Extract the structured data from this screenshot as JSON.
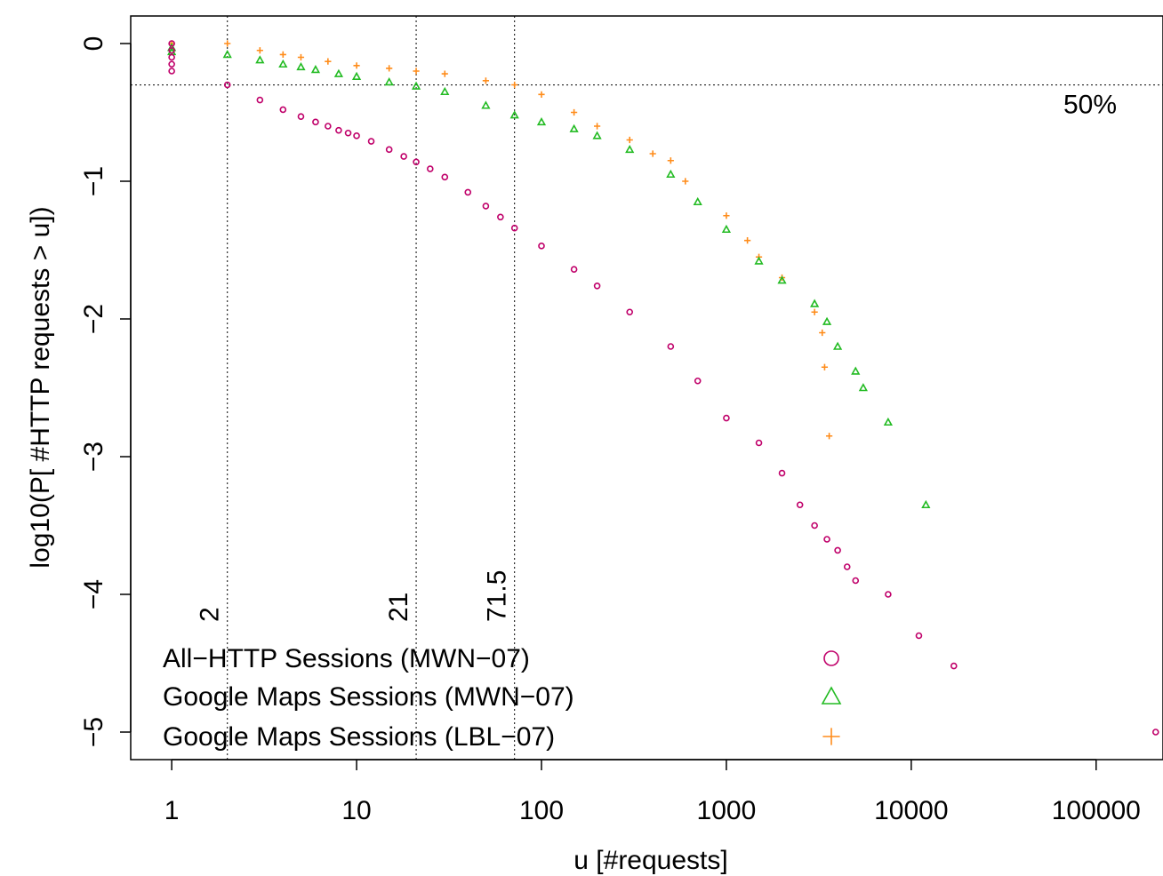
{
  "chart_data": {
    "type": "scatter",
    "title": "",
    "xlabel": "u [#requests]",
    "ylabel": "log10(P[ #HTTP requests  > u])",
    "x_scale": "log10",
    "xlim": [
      0.6,
      230000
    ],
    "ylim": [
      -5.2,
      0.2
    ],
    "x_ticks": [
      1,
      10,
      100,
      1000,
      10000,
      100000
    ],
    "x_tick_labels": [
      "1",
      "10",
      "100",
      "1000",
      "10000",
      "100000"
    ],
    "y_ticks": [
      0,
      -1,
      -2,
      -3,
      -4,
      -5
    ],
    "y_tick_labels": [
      "0",
      "−1",
      "−2",
      "−3",
      "−4",
      "−5"
    ],
    "grid": false,
    "legend_position": "bottom-left",
    "reference_lines": {
      "horizontal": [
        {
          "y": -0.301,
          "label": "50%"
        }
      ],
      "vertical": [
        {
          "x": 2,
          "label": "2"
        },
        {
          "x": 21,
          "label": "21"
        },
        {
          "x": 71.5,
          "label": "71.5"
        }
      ]
    },
    "series": [
      {
        "name": "All−HTTP Sessions (MWN−07)",
        "marker": "circle",
        "color": "#c0006a",
        "points": [
          [
            1,
            0
          ],
          [
            1,
            -0.05
          ],
          [
            1,
            -0.1
          ],
          [
            1,
            -0.15
          ],
          [
            1,
            -0.2
          ],
          [
            2,
            -0.3
          ],
          [
            3,
            -0.41
          ],
          [
            4,
            -0.48
          ],
          [
            5,
            -0.53
          ],
          [
            6,
            -0.57
          ],
          [
            7,
            -0.6
          ],
          [
            8,
            -0.63
          ],
          [
            9,
            -0.65
          ],
          [
            10,
            -0.67
          ],
          [
            12,
            -0.71
          ],
          [
            15,
            -0.77
          ],
          [
            18,
            -0.82
          ],
          [
            21,
            -0.86
          ],
          [
            25,
            -0.91
          ],
          [
            30,
            -0.97
          ],
          [
            40,
            -1.08
          ],
          [
            50,
            -1.18
          ],
          [
            60,
            -1.26
          ],
          [
            71.5,
            -1.34
          ],
          [
            100,
            -1.47
          ],
          [
            150,
            -1.64
          ],
          [
            200,
            -1.76
          ],
          [
            300,
            -1.95
          ],
          [
            500,
            -2.2
          ],
          [
            700,
            -2.45
          ],
          [
            1000,
            -2.72
          ],
          [
            1500,
            -2.9
          ],
          [
            2000,
            -3.12
          ],
          [
            2500,
            -3.35
          ],
          [
            3000,
            -3.5
          ],
          [
            3500,
            -3.6
          ],
          [
            4000,
            -3.68
          ],
          [
            4500,
            -3.8
          ],
          [
            5000,
            -3.9
          ],
          [
            7500,
            -4.0
          ],
          [
            11000,
            -4.3
          ],
          [
            17000,
            -4.52
          ],
          [
            210000,
            -5.0
          ]
        ]
      },
      {
        "name": "Google Maps Sessions (MWN−07)",
        "marker": "triangle",
        "color": "#22bb22",
        "points": [
          [
            1,
            -0.03
          ],
          [
            1,
            -0.06
          ],
          [
            2,
            -0.08
          ],
          [
            3,
            -0.12
          ],
          [
            4,
            -0.15
          ],
          [
            5,
            -0.17
          ],
          [
            6,
            -0.19
          ],
          [
            8,
            -0.22
          ],
          [
            10,
            -0.24
          ],
          [
            15,
            -0.28
          ],
          [
            21,
            -0.31
          ],
          [
            30,
            -0.35
          ],
          [
            50,
            -0.45
          ],
          [
            71.5,
            -0.52
          ],
          [
            100,
            -0.57
          ],
          [
            150,
            -0.62
          ],
          [
            200,
            -0.67
          ],
          [
            300,
            -0.77
          ],
          [
            500,
            -0.95
          ],
          [
            700,
            -1.15
          ],
          [
            1000,
            -1.35
          ],
          [
            1500,
            -1.58
          ],
          [
            2000,
            -1.72
          ],
          [
            3000,
            -1.89
          ],
          [
            3500,
            -2.02
          ],
          [
            4000,
            -2.2
          ],
          [
            5000,
            -2.38
          ],
          [
            5500,
            -2.5
          ],
          [
            7500,
            -2.75
          ],
          [
            12000,
            -3.35
          ]
        ]
      },
      {
        "name": "Google Maps Sessions (LBL−07)",
        "marker": "plus",
        "color": "#ff8c1a",
        "points": [
          [
            1,
            0
          ],
          [
            2,
            0
          ],
          [
            3,
            -0.05
          ],
          [
            4,
            -0.08
          ],
          [
            5,
            -0.1
          ],
          [
            7,
            -0.13
          ],
          [
            10,
            -0.16
          ],
          [
            15,
            -0.18
          ],
          [
            21,
            -0.2
          ],
          [
            30,
            -0.22
          ],
          [
            50,
            -0.27
          ],
          [
            71.5,
            -0.3
          ],
          [
            100,
            -0.37
          ],
          [
            150,
            -0.5
          ],
          [
            200,
            -0.6
          ],
          [
            300,
            -0.7
          ],
          [
            400,
            -0.8
          ],
          [
            500,
            -0.85
          ],
          [
            600,
            -1.0
          ],
          [
            1000,
            -1.25
          ],
          [
            1300,
            -1.43
          ],
          [
            1500,
            -1.55
          ],
          [
            2000,
            -1.7
          ],
          [
            3000,
            -1.95
          ],
          [
            3300,
            -2.1
          ],
          [
            3400,
            -2.35
          ],
          [
            3600,
            -2.85
          ]
        ]
      }
    ]
  }
}
